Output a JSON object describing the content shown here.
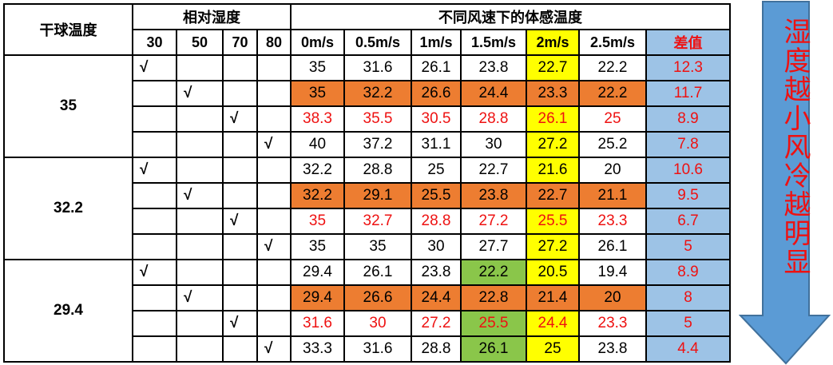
{
  "header": {
    "dry_bulb": "干球温度",
    "humidity": "相对湿度",
    "feel": "不同风速下的体感温度",
    "humidity_cols": [
      "30",
      "50",
      "70",
      "80"
    ],
    "speed_cols": [
      "0m/s",
      "0.5m/s",
      "1m/s",
      "1.5m/s",
      "2m/s",
      "2.5m/s"
    ],
    "diff": "差值"
  },
  "check_mark": "√",
  "groups": [
    {
      "dry": "35",
      "rows": [
        {
          "rh": 0,
          "values": [
            "35",
            "31.6",
            "26.1",
            "23.8",
            "22.7",
            "22.2"
          ],
          "diff": "12.3",
          "fill": "",
          "red": false,
          "green": []
        },
        {
          "rh": 1,
          "values": [
            "35",
            "32.2",
            "26.6",
            "24.4",
            "23.3",
            "22.2"
          ],
          "diff": "11.7",
          "fill": "orange",
          "red": false,
          "green": []
        },
        {
          "rh": 2,
          "values": [
            "38.3",
            "35.5",
            "30.5",
            "28.8",
            "26.1",
            "25"
          ],
          "diff": "8.9",
          "fill": "",
          "red": true,
          "green": []
        },
        {
          "rh": 3,
          "values": [
            "40",
            "37.2",
            "31.1",
            "30",
            "27.2",
            "25.2"
          ],
          "diff": "7.8",
          "fill": "",
          "red": false,
          "green": []
        }
      ]
    },
    {
      "dry": "32.2",
      "rows": [
        {
          "rh": 0,
          "values": [
            "32.2",
            "28.8",
            "25",
            "22.7",
            "21.6",
            "20"
          ],
          "diff": "10.6",
          "fill": "",
          "red": false,
          "green": []
        },
        {
          "rh": 1,
          "values": [
            "32.2",
            "29.1",
            "25.5",
            "23.8",
            "22.7",
            "21.1"
          ],
          "diff": "9.5",
          "fill": "orange",
          "red": false,
          "green": []
        },
        {
          "rh": 2,
          "values": [
            "35",
            "32.7",
            "28.8",
            "27.2",
            "25.5",
            "23.3"
          ],
          "diff": "6.7",
          "fill": "",
          "red": true,
          "green": []
        },
        {
          "rh": 3,
          "values": [
            "35",
            "35",
            "30",
            "27.7",
            "27.2",
            "26.1"
          ],
          "diff": "5",
          "fill": "",
          "red": false,
          "green": []
        }
      ]
    },
    {
      "dry": "29.4",
      "rows": [
        {
          "rh": 0,
          "values": [
            "29.4",
            "26.1",
            "23.8",
            "22.2",
            "20.5",
            "19.4"
          ],
          "diff": "8.9",
          "fill": "",
          "red": false,
          "green": [
            3
          ]
        },
        {
          "rh": 1,
          "values": [
            "29.4",
            "26.6",
            "24.4",
            "22.8",
            "21.4",
            "20"
          ],
          "diff": "8",
          "fill": "orange",
          "red": false,
          "green": []
        },
        {
          "rh": 2,
          "values": [
            "31.6",
            "30",
            "27.2",
            "25.5",
            "24.4",
            "23.3"
          ],
          "diff": "5",
          "fill": "",
          "red": true,
          "green": [
            3
          ]
        },
        {
          "rh": 3,
          "values": [
            "33.3",
            "31.6",
            "28.8",
            "26.1",
            "25",
            "23.8"
          ],
          "diff": "4.4",
          "fill": "",
          "red": false,
          "green": [
            3
          ]
        }
      ]
    }
  ],
  "highlight_column": 4,
  "arrow": {
    "text": "湿度越小风冷越明显",
    "color": "#5b9bd5",
    "text_color": "#ee1111"
  }
}
